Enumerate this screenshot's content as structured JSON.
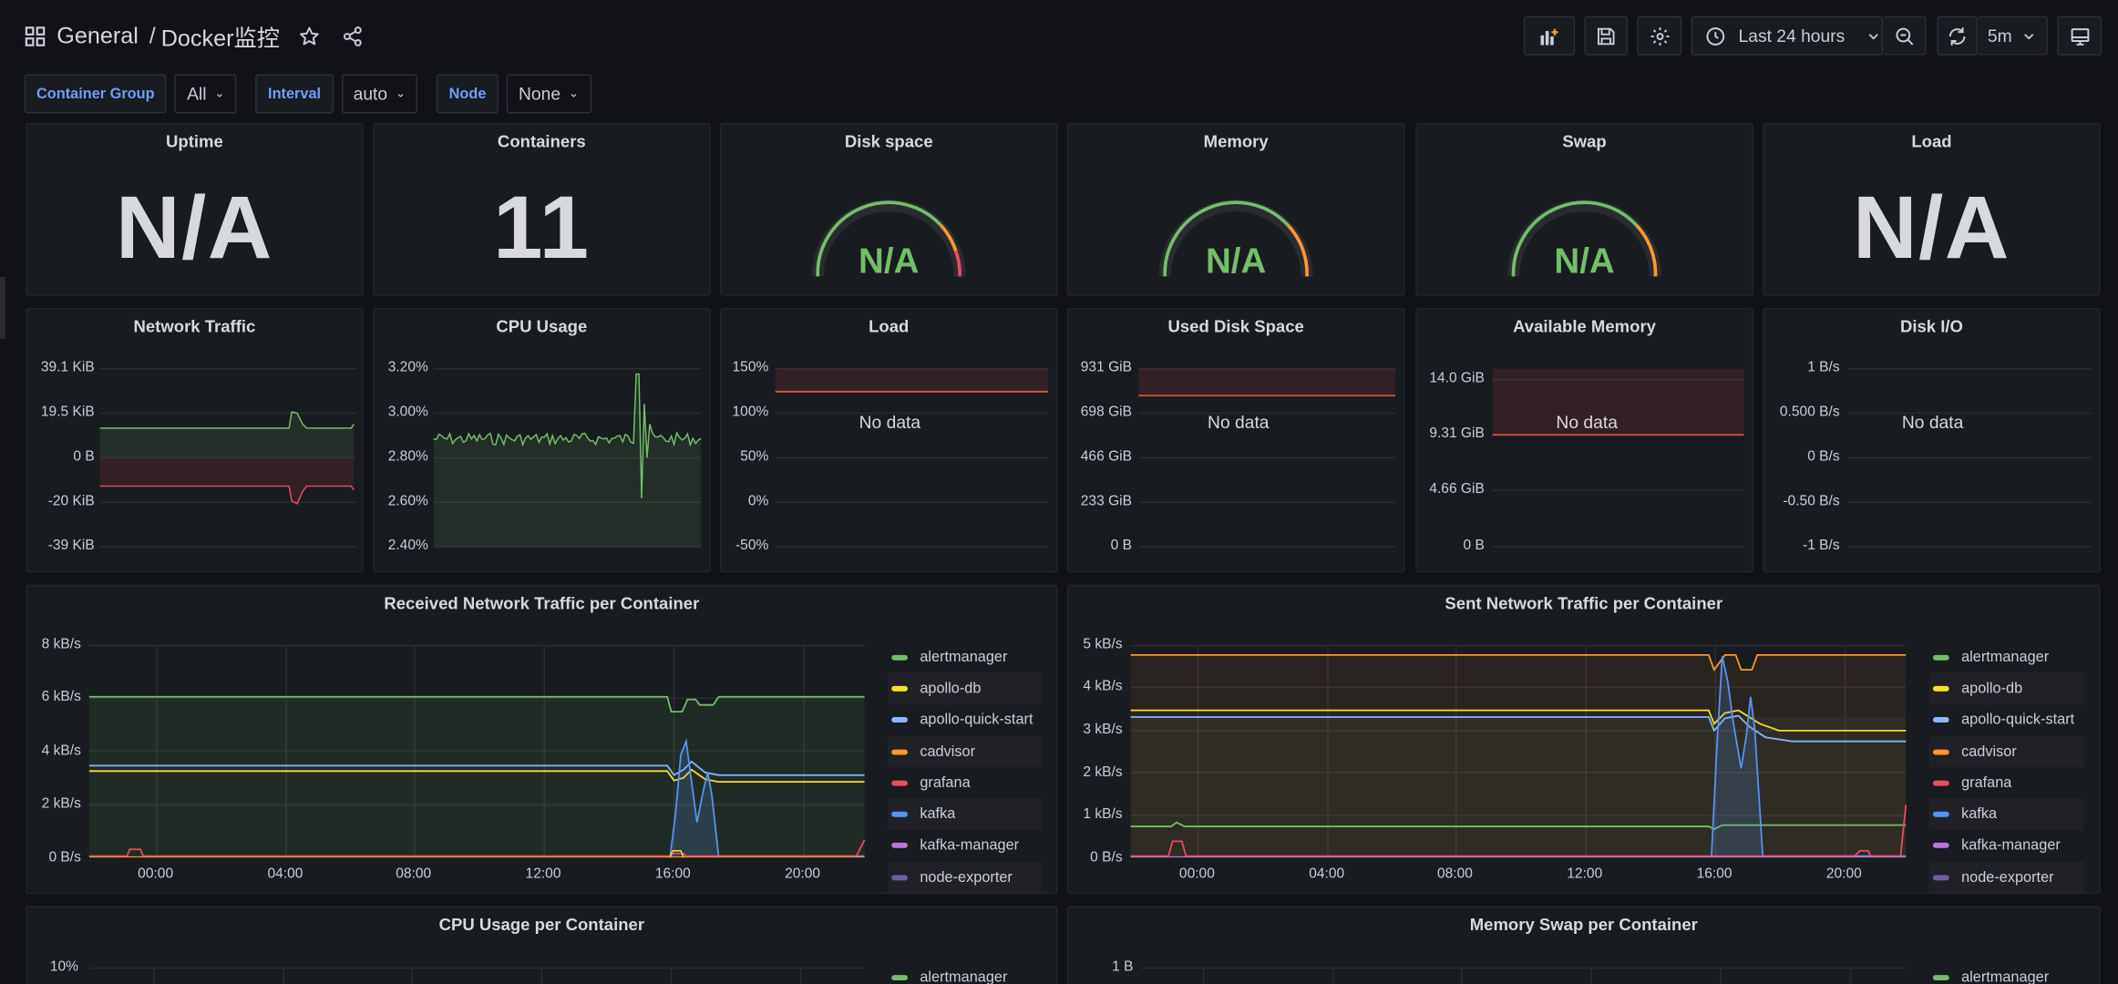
{
  "breadcrumb": {
    "folder": "General",
    "separator": "/",
    "dashboard": "Docker监控"
  },
  "toolbar": {
    "time_range": "Last 24 hours",
    "refresh": "5m"
  },
  "variables": [
    {
      "label": "Container Group",
      "value": "All"
    },
    {
      "label": "Interval",
      "value": "auto"
    },
    {
      "label": "Node",
      "value": "None"
    }
  ],
  "stats": {
    "uptime": {
      "title": "Uptime",
      "value": "N/A"
    },
    "containers": {
      "title": "Containers",
      "value": "11"
    },
    "disk_space": {
      "title": "Disk space",
      "value": "N/A"
    },
    "memory": {
      "title": "Memory",
      "value": "N/A"
    },
    "swap": {
      "title": "Swap",
      "value": "N/A"
    },
    "load": {
      "title": "Load",
      "value": "N/A"
    }
  },
  "small_panels": {
    "network_traffic": {
      "title": "Network Traffic",
      "yticks": [
        "39.1 KiB",
        "19.5 KiB",
        "0 B",
        "-20 KiB",
        "-39 KiB"
      ]
    },
    "cpu_usage": {
      "title": "CPU Usage",
      "yticks": [
        "3.20%",
        "3.00%",
        "2.80%",
        "2.60%",
        "2.40%"
      ]
    },
    "load": {
      "title": "Load",
      "yticks": [
        "150%",
        "100%",
        "50%",
        "0%",
        "-50%"
      ],
      "no_data": "No data"
    },
    "used_disk": {
      "title": "Used Disk Space",
      "yticks": [
        "931 GiB",
        "698 GiB",
        "466 GiB",
        "233 GiB",
        "0 B"
      ],
      "no_data": "No data"
    },
    "available_memory": {
      "title": "Available Memory",
      "yticks": [
        "14.0 GiB",
        "9.31 GiB",
        "4.66 GiB",
        "0 B"
      ],
      "no_data": "No data"
    },
    "disk_io": {
      "title": "Disk I/O",
      "yticks": [
        "1 B/s",
        "0.500 B/s",
        "0 B/s",
        "-0.50 B/s",
        "-1 B/s"
      ],
      "no_data": "No data"
    }
  },
  "received": {
    "title": "Received Network Traffic per Container",
    "yticks": [
      "8 kB/s",
      "6 kB/s",
      "4 kB/s",
      "2 kB/s",
      "0 B/s"
    ],
    "xticks": [
      "00:00",
      "04:00",
      "08:00",
      "12:00",
      "16:00",
      "20:00"
    ]
  },
  "sent": {
    "title": "Sent Network Traffic per Container",
    "yticks": [
      "5 kB/s",
      "4 kB/s",
      "3 kB/s",
      "2 kB/s",
      "1 kB/s",
      "0 B/s"
    ],
    "xticks": [
      "00:00",
      "04:00",
      "08:00",
      "12:00",
      "16:00",
      "20:00"
    ]
  },
  "legend": [
    {
      "name": "alertmanager",
      "color": "#73bf69"
    },
    {
      "name": "apollo-db",
      "color": "#fade2a"
    },
    {
      "name": "apollo-quick-start",
      "color": "#8ab8ff"
    },
    {
      "name": "cadvisor",
      "color": "#ff9830"
    },
    {
      "name": "grafana",
      "color": "#f2495c"
    },
    {
      "name": "kafka",
      "color": "#5794f2"
    },
    {
      "name": "kafka-manager",
      "color": "#b877d9"
    },
    {
      "name": "node-exporter",
      "color": "#705da0"
    }
  ],
  "cpu_per_container": {
    "title": "CPU Usage per Container",
    "ytick": "10%",
    "legend_first": "alertmanager"
  },
  "swap_per_container": {
    "title": "Memory Swap per Container",
    "ytick": "1 B",
    "legend_first": "alertmanager"
  },
  "icons": {
    "grid": "grid-icon",
    "star": "star-icon",
    "share": "share-icon",
    "add_panel": "add-panel-icon",
    "save": "save-icon",
    "settings": "gear-icon",
    "clock": "clock-icon",
    "zoom_out": "zoom-out-icon",
    "refresh": "refresh-icon",
    "tv": "tv-mode-icon"
  },
  "colors": {
    "background": "#111217",
    "panel": "#181b1f",
    "green": "#73bf69",
    "red": "#f2495c",
    "blue_label": "#6e9fff"
  }
}
